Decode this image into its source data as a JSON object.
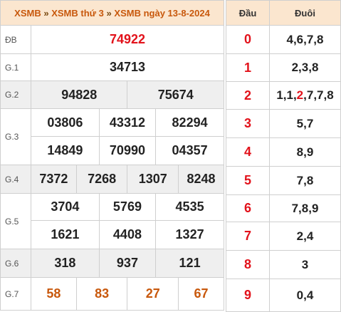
{
  "header": {
    "crumb1": "XSMB",
    "crumb2": "XSMB thứ 3",
    "crumb3": "XSMB ngày 13-8-2024",
    "separator": "»"
  },
  "results": {
    "db": {
      "label": "ĐB",
      "values": [
        "74922"
      ]
    },
    "g1": {
      "label": "G.1",
      "values": [
        "34713"
      ]
    },
    "g2": {
      "label": "G.2",
      "values": [
        "94828",
        "75674"
      ]
    },
    "g3": {
      "label": "G.3",
      "row1": [
        "03806",
        "43312",
        "82294"
      ],
      "row2": [
        "14849",
        "70990",
        "04357"
      ]
    },
    "g4": {
      "label": "G.4",
      "values": [
        "7372",
        "7268",
        "1307",
        "8248"
      ]
    },
    "g5": {
      "label": "G.5",
      "row1": [
        "3704",
        "5769",
        "4535"
      ],
      "row2": [
        "1621",
        "4408",
        "1327"
      ]
    },
    "g6": {
      "label": "G.6",
      "values": [
        "318",
        "937",
        "121"
      ]
    },
    "g7": {
      "label": "G.7",
      "values": [
        "58",
        "83",
        "27",
        "67"
      ]
    }
  },
  "loto": {
    "head_label": "Đầu",
    "tail_label": "Đuôi",
    "rows": [
      {
        "dau": "0",
        "duoi": "4,6,7,8"
      },
      {
        "dau": "1",
        "duoi": "2,3,8"
      },
      {
        "dau": "2",
        "duoi_pre": "1,1,",
        "duoi_hl": "2",
        "duoi_post": ",7,7,8"
      },
      {
        "dau": "3",
        "duoi": "5,7"
      },
      {
        "dau": "4",
        "duoi": "8,9"
      },
      {
        "dau": "5",
        "duoi": "7,8"
      },
      {
        "dau": "6",
        "duoi": "7,8,9"
      },
      {
        "dau": "7",
        "duoi": "2,4"
      },
      {
        "dau": "8",
        "duoi": "3"
      },
      {
        "dau": "9",
        "duoi": "0,4"
      }
    ]
  },
  "colors": {
    "accent": "#c8580c",
    "red": "#e2121b",
    "header_bg": "#fbe6cf",
    "row_gray": "#efefef"
  }
}
